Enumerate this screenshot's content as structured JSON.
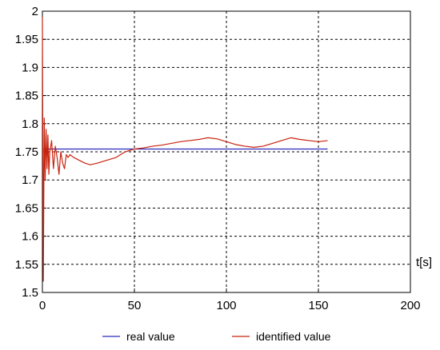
{
  "chart_data": {
    "type": "line",
    "xlabel": "t[s]",
    "ylabel": "",
    "xlim": [
      0,
      200
    ],
    "ylim": [
      1.5,
      2.0
    ],
    "x_ticks": [
      0,
      50,
      100,
      150,
      200
    ],
    "y_ticks": [
      1.5,
      1.55,
      1.6,
      1.65,
      1.7,
      1.75,
      1.8,
      1.85,
      1.9,
      1.95,
      2.0
    ],
    "x_tick_labels": [
      "0",
      "50",
      "100",
      "150",
      "200"
    ],
    "y_tick_labels": [
      "1.5",
      "1.55",
      "1.6",
      "1.65",
      "1.7",
      "1.75",
      "1.8",
      "1.85",
      "1.9",
      "1.95",
      "2"
    ],
    "grid": true,
    "legend_placement": "bottom",
    "series": [
      {
        "name": "real value",
        "color": "#2b2bbd",
        "x": [
          0,
          155
        ],
        "y": [
          1.755,
          1.755
        ]
      },
      {
        "name": "identified value",
        "color": "#c8220e",
        "x": [
          0,
          0.5,
          1,
          1.5,
          2,
          2.5,
          3,
          3.5,
          4,
          5,
          6,
          7,
          8,
          9,
          10,
          11,
          12,
          13,
          14,
          15,
          17,
          20,
          23,
          26,
          30,
          35,
          40,
          45,
          50,
          55,
          60,
          65,
          70,
          75,
          80,
          85,
          90,
          95,
          100,
          105,
          110,
          115,
          120,
          125,
          130,
          135,
          140,
          145,
          150,
          155
        ],
        "y": [
          1.99,
          1.52,
          1.81,
          1.7,
          1.79,
          1.72,
          1.78,
          1.71,
          1.75,
          1.77,
          1.72,
          1.76,
          1.74,
          1.71,
          1.75,
          1.73,
          1.72,
          1.745,
          1.74,
          1.745,
          1.74,
          1.735,
          1.73,
          1.727,
          1.73,
          1.735,
          1.74,
          1.75,
          1.755,
          1.757,
          1.76,
          1.762,
          1.765,
          1.768,
          1.77,
          1.772,
          1.775,
          1.773,
          1.768,
          1.763,
          1.76,
          1.758,
          1.76,
          1.765,
          1.77,
          1.775,
          1.772,
          1.77,
          1.768,
          1.77
        ]
      }
    ]
  }
}
